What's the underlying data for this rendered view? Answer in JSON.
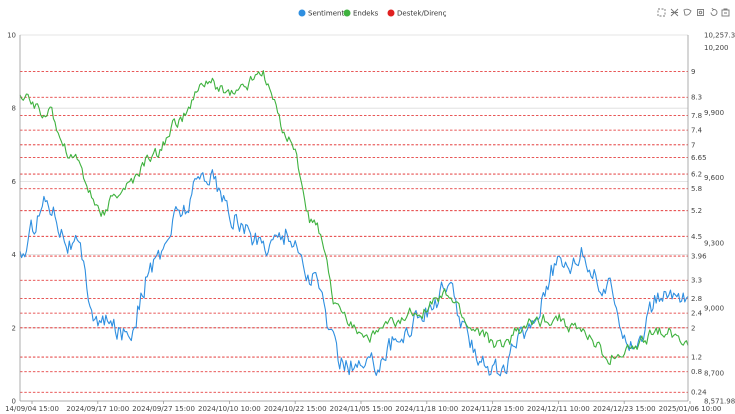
{
  "toolbar": {
    "icons": [
      "zoom-icon",
      "zoom-reset-icon",
      "lasso-select-icon",
      "rect-select-icon",
      "restore-icon",
      "save-image-icon"
    ]
  },
  "chart_data": {
    "type": "line",
    "title": "",
    "legend": {
      "placement": "top-center",
      "items": [
        {
          "name": "Sentiment",
          "color": "#2f8fe0"
        },
        {
          "name": "Endeks",
          "color": "#3fb23f"
        },
        {
          "name": "Destek/Direnç",
          "color": "#e02020"
        }
      ]
    },
    "x_labels": [
      "14/09/04 15:00",
      "2024/09/17 10:00",
      "2024/09/27 15:00",
      "2024/10/10 10:00",
      "2024/10/22 15:00",
      "2024/11/05 15:00",
      "2024/11/18 10:00",
      "2024/11/28 15:00",
      "2024/12/11 10:00",
      "2024/12/23 15:00",
      "2025/01/06 10:00"
    ],
    "left_axis": {
      "name": "Sentiment",
      "ylim": [
        0,
        10
      ],
      "ticks": [
        "10",
        "8",
        "6",
        "4",
        "2",
        "0"
      ]
    },
    "right_axis": {
      "name": "Endeks",
      "ylim": [
        8571.98,
        10257.3
      ],
      "ticks": [
        "10,257.3",
        "10,200",
        "9,900",
        "9,600",
        "9,300",
        "9,000",
        "8,700",
        "8,571.98"
      ]
    },
    "support_resistance": {
      "color": "#e02020",
      "style": "dashed",
      "levels": [
        9,
        8.3,
        7.8,
        7.4,
        7,
        6.65,
        6.2,
        5.8,
        5.2,
        4.5,
        3.96,
        3.3,
        2.8,
        2.4,
        2,
        1.2,
        0.8,
        0.24
      ],
      "labels": [
        "9",
        "8.3",
        "7.8",
        "7.4",
        "7",
        "6.65",
        "6.2",
        "5.8",
        "5.2",
        "4.5",
        "3.96",
        "3.3",
        "2.8",
        "2.4",
        "2",
        "1.2",
        "0.8",
        "0.24"
      ]
    },
    "grid": true,
    "series": [
      {
        "name": "Sentiment",
        "axis": "left",
        "color": "#2f8fe0",
        "x": [
          0,
          0.4,
          0.8,
          1.2,
          1.6,
          2,
          2.4,
          2.8,
          3.2,
          3.6,
          4,
          4.4,
          4.8,
          5.2,
          5.6,
          6,
          6.4,
          6.8,
          7.2,
          7.6,
          8,
          8.4,
          8.8,
          9.2,
          9.6,
          10
        ],
        "values": [
          4.0,
          5.5,
          4.3,
          2.1,
          1.9,
          3.7,
          5.2,
          6.3,
          5.0,
          4.3,
          4.6,
          3.3,
          1.1,
          0.9,
          1.6,
          2.4,
          3.0,
          1.4,
          0.8,
          2.0,
          3.6,
          4.0,
          3.0,
          1.6,
          2.8,
          2.9
        ]
      },
      {
        "name": "Endeks",
        "axis": "right",
        "color": "#3fb23f",
        "x": [
          0,
          0.4,
          0.8,
          1.2,
          1.6,
          2,
          2.4,
          2.8,
          3.2,
          3.6,
          4,
          4.4,
          4.8,
          5.2,
          5.6,
          6,
          6.4,
          6.8,
          7.2,
          7.6,
          8,
          8.4,
          8.8,
          9.2,
          9.6,
          10
        ],
        "values": [
          9980,
          9900,
          9700,
          9450,
          9560,
          9700,
          9870,
          10040,
          9990,
          10080,
          9800,
          9380,
          8980,
          8870,
          8920,
          9000,
          9050,
          8900,
          8830,
          8920,
          8960,
          8890,
          8780,
          8810,
          8900,
          8850
        ]
      }
    ]
  }
}
